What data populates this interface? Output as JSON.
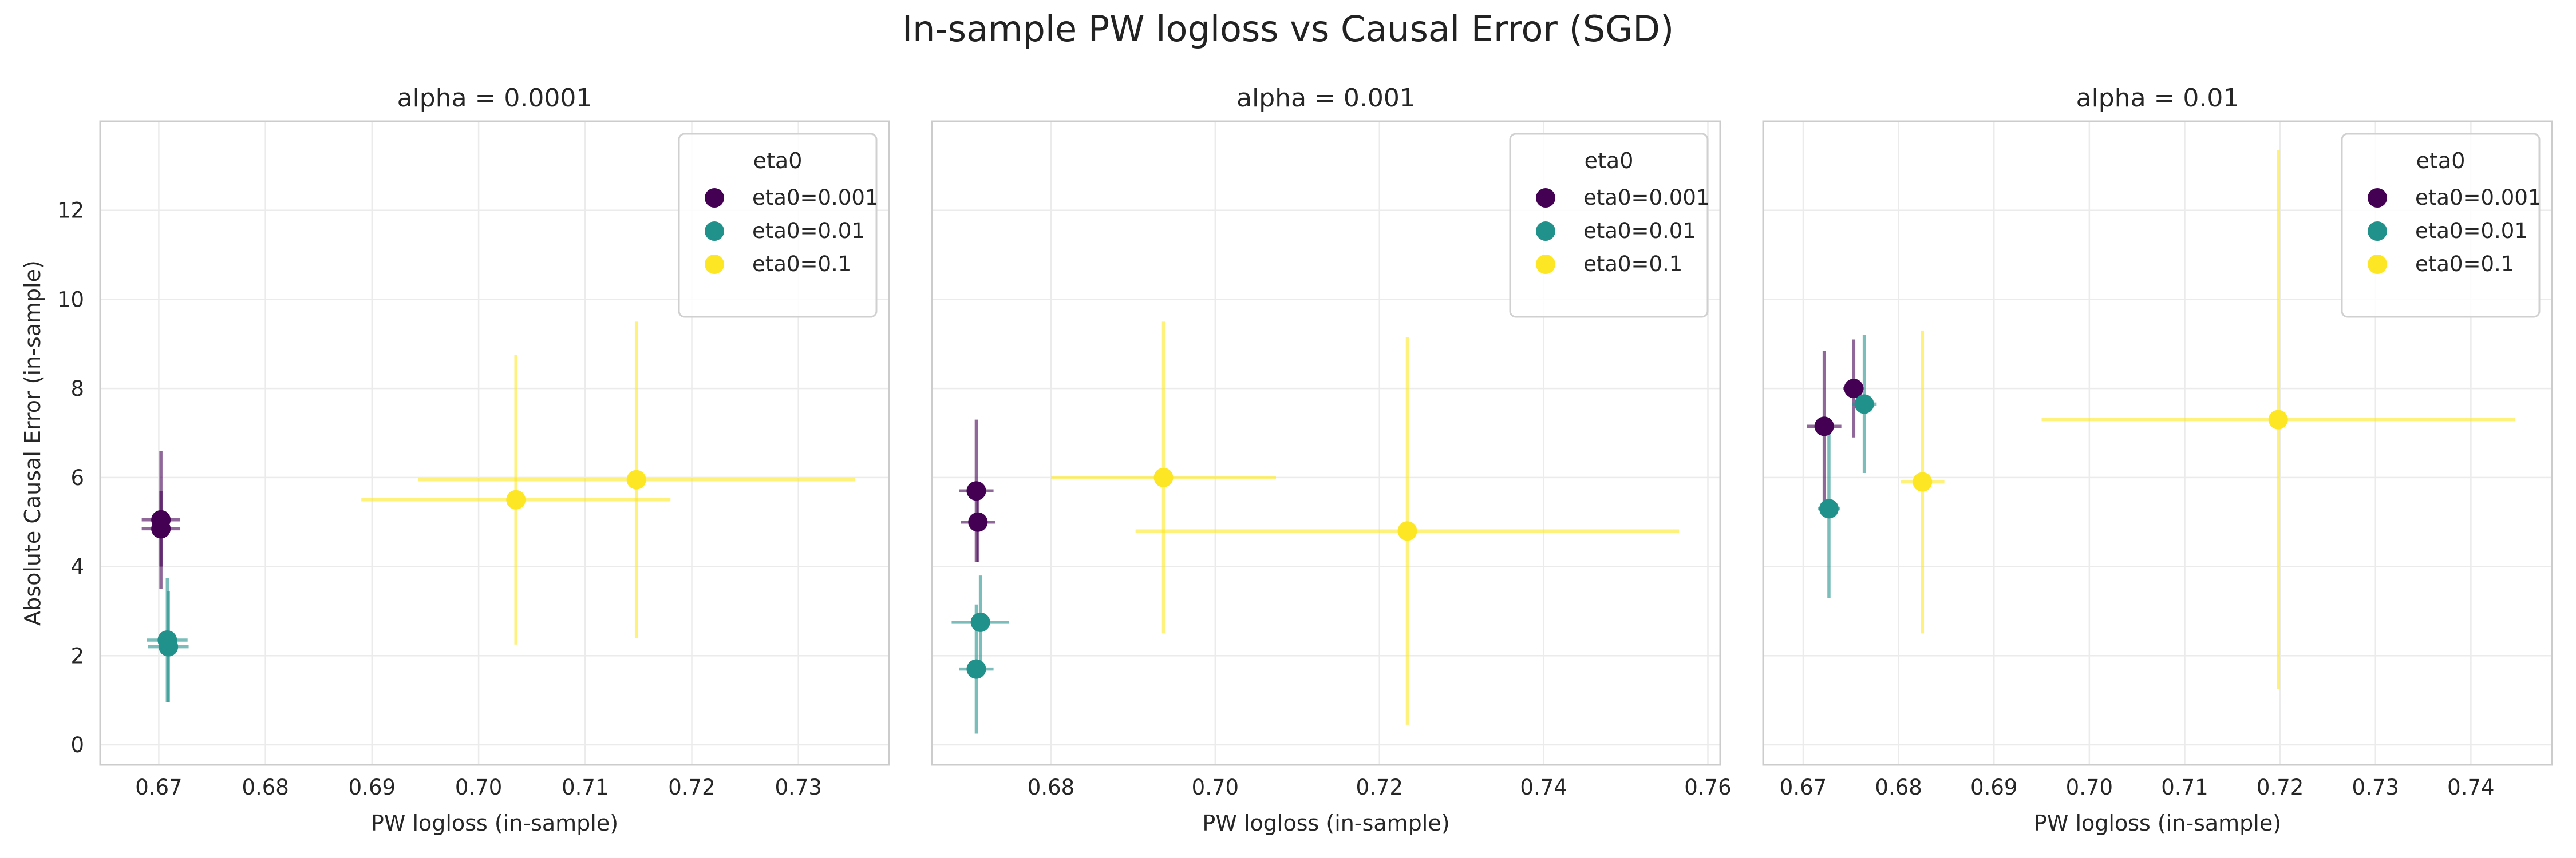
{
  "figure": {
    "title": "In-sample PW logloss vs Causal Error (SGD)"
  },
  "chart_data": [
    {
      "type": "scatter",
      "title": "alpha = 0.0001",
      "xlabel": "PW logloss (in-sample)",
      "ylabel": "Absolute Causal Error (in-sample)",
      "xlim": [
        0.6645,
        0.7385
      ],
      "ylim": [
        -0.45,
        14.0
      ],
      "xticks": [
        0.67,
        0.68,
        0.69,
        0.7,
        0.71,
        0.72,
        0.73
      ],
      "yticks": [
        0,
        2,
        4,
        6,
        8,
        10,
        12
      ],
      "grid": true,
      "legend": {
        "title": "eta0",
        "position": "upper-right",
        "entries": [
          "eta0=0.001",
          "eta0=0.01",
          "eta0=0.1"
        ]
      },
      "series": [
        {
          "name": "eta0=0.001",
          "color": "#440154",
          "points": [
            {
              "x": 0.6702,
              "y": 5.05,
              "xerr": 0.0018,
              "yerr": 1.55
            },
            {
              "x": 0.6702,
              "y": 4.85,
              "xerr": 0.0018,
              "yerr": 0.85
            }
          ]
        },
        {
          "name": "eta0=0.01",
          "color": "#21918c",
          "points": [
            {
              "x": 0.6708,
              "y": 2.35,
              "xerr": 0.0019,
              "yerr": 1.4
            },
            {
              "x": 0.6709,
              "y": 2.2,
              "xerr": 0.0019,
              "yerr": 1.25
            }
          ]
        },
        {
          "name": "eta0=0.1",
          "color": "#fde725",
          "points": [
            {
              "x": 0.7035,
              "y": 5.5,
              "xerr": 0.0145,
              "yerr": 3.25
            },
            {
              "x": 0.7148,
              "y": 5.95,
              "xerr": 0.0205,
              "yerr": 3.55
            }
          ]
        }
      ]
    },
    {
      "type": "scatter",
      "title": "alpha = 0.001",
      "xlabel": "PW logloss (in-sample)",
      "ylabel": "",
      "xlim": [
        0.6655,
        0.7615
      ],
      "ylim": [
        -0.45,
        14.0
      ],
      "xticks": [
        0.68,
        0.7,
        0.72,
        0.74,
        0.76
      ],
      "yticks": [
        0,
        2,
        4,
        6,
        8,
        10,
        12
      ],
      "grid": true,
      "legend": {
        "title": "eta0",
        "position": "upper-right",
        "entries": [
          "eta0=0.001",
          "eta0=0.01",
          "eta0=0.1"
        ]
      },
      "series": [
        {
          "name": "eta0=0.001",
          "color": "#440154",
          "points": [
            {
              "x": 0.6709,
              "y": 5.7,
              "xerr": 0.0021,
              "yerr": 1.6
            },
            {
              "x": 0.6711,
              "y": 5.0,
              "xerr": 0.0021,
              "yerr": 0.9
            }
          ]
        },
        {
          "name": "eta0=0.01",
          "color": "#21918c",
          "points": [
            {
              "x": 0.6714,
              "y": 2.75,
              "xerr": 0.0035,
              "yerr": 1.05
            },
            {
              "x": 0.6709,
              "y": 1.7,
              "xerr": 0.0021,
              "yerr": 1.45
            }
          ]
        },
        {
          "name": "eta0=0.1",
          "color": "#fde725",
          "points": [
            {
              "x": 0.6937,
              "y": 6.0,
              "xerr": 0.0137,
              "yerr": 3.5
            },
            {
              "x": 0.7234,
              "y": 4.8,
              "xerr": 0.0331,
              "yerr": 4.35
            }
          ]
        }
      ]
    },
    {
      "type": "scatter",
      "title": "alpha = 0.01",
      "xlabel": "PW logloss (in-sample)",
      "ylabel": "",
      "xlim": [
        0.6658,
        0.7485
      ],
      "ylim": [
        -0.45,
        14.0
      ],
      "xticks": [
        0.67,
        0.68,
        0.69,
        0.7,
        0.71,
        0.72,
        0.73,
        0.74
      ],
      "yticks": [
        0,
        2,
        4,
        6,
        8,
        10,
        12
      ],
      "grid": true,
      "legend": {
        "title": "eta0",
        "position": "upper-right",
        "entries": [
          "eta0=0.001",
          "eta0=0.01",
          "eta0=0.1"
        ]
      },
      "series": [
        {
          "name": "eta0=0.001",
          "color": "#440154",
          "points": [
            {
              "x": 0.6722,
              "y": 7.15,
              "xerr": 0.0018,
              "yerr": 1.7
            },
            {
              "x": 0.6753,
              "y": 8.0,
              "xerr": 0.0011,
              "yerr": 1.1
            }
          ]
        },
        {
          "name": "eta0=0.01",
          "color": "#21918c",
          "points": [
            {
              "x": 0.6727,
              "y": 5.3,
              "xerr": 0.0012,
              "yerr": 2.0
            },
            {
              "x": 0.6764,
              "y": 7.65,
              "xerr": 0.0013,
              "yerr": 1.55
            }
          ]
        },
        {
          "name": "eta0=0.1",
          "color": "#fde725",
          "points": [
            {
              "x": 0.6825,
              "y": 5.9,
              "xerr": 0.0023,
              "yerr": 3.4
            },
            {
              "x": 0.7198,
              "y": 7.3,
              "xerr": 0.0248,
              "yerr": 6.05
            }
          ]
        }
      ]
    }
  ]
}
